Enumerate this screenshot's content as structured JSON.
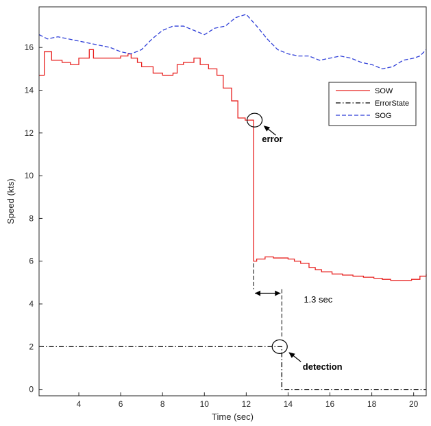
{
  "chart_data": {
    "type": "line",
    "xlabel": "Time (sec)",
    "ylabel": "Speed (kts)",
    "xlim": [
      2.1,
      20.6
    ],
    "ylim": [
      -0.3,
      17.9
    ],
    "xticks": [
      4,
      6,
      8,
      10,
      12,
      14,
      16,
      18,
      20
    ],
    "yticks": [
      0,
      2,
      4,
      6,
      8,
      10,
      12,
      14,
      16
    ],
    "grid": false,
    "legend_position": "right",
    "series": [
      {
        "name": "SOW",
        "color": "#e8201f",
        "style": "solid",
        "step": true,
        "x": [
          2.1,
          2.35,
          2.7,
          3.2,
          3.6,
          4.0,
          4.5,
          4.65,
          4.7,
          5.5,
          6.0,
          6.35,
          6.5,
          6.8,
          7.0,
          7.35,
          7.55,
          8.0,
          8.5,
          8.7,
          9.0,
          9.2,
          9.5,
          9.8,
          10.2,
          10.6,
          10.9,
          11.3,
          11.6,
          11.95,
          12.35,
          12.5,
          12.9,
          13.3,
          14.0,
          14.3,
          14.6,
          15.0,
          15.3,
          15.6,
          16.1,
          16.6,
          17.1,
          17.6,
          18.1,
          18.5,
          18.9,
          19.4,
          19.9,
          20.3,
          20.6
        ],
        "y": [
          14.7,
          15.8,
          15.4,
          15.3,
          15.2,
          15.5,
          15.9,
          15.9,
          15.5,
          15.5,
          15.6,
          15.7,
          15.5,
          15.3,
          15.1,
          15.1,
          14.8,
          14.7,
          14.8,
          15.2,
          15.3,
          15.3,
          15.5,
          15.2,
          15.0,
          14.7,
          14.1,
          13.5,
          12.7,
          12.6,
          6.0,
          6.1,
          6.2,
          6.15,
          6.1,
          6.0,
          5.9,
          5.7,
          5.6,
          5.5,
          5.4,
          5.35,
          5.3,
          5.25,
          5.2,
          5.15,
          5.1,
          5.1,
          5.15,
          5.3,
          5.4
        ]
      },
      {
        "name": "ErrorState",
        "color": "#000000",
        "style": "dashdot",
        "step": true,
        "x": [
          2.1,
          13.7,
          13.7,
          20.6
        ],
        "y": [
          2.0,
          2.0,
          0.0,
          0.0
        ]
      },
      {
        "name": "SOG",
        "color": "#2f3fd8",
        "style": "dashed",
        "step": false,
        "x": [
          2.1,
          2.5,
          3.0,
          3.5,
          4.0,
          4.5,
          5.0,
          5.5,
          6.0,
          6.5,
          7.0,
          7.5,
          8.0,
          8.5,
          9.0,
          9.5,
          10.0,
          10.5,
          11.0,
          11.5,
          12.0,
          12.5,
          13.0,
          13.5,
          14.0,
          14.5,
          15.0,
          15.5,
          16.0,
          16.5,
          17.0,
          17.5,
          18.0,
          18.5,
          19.0,
          19.5,
          20.0,
          20.3,
          20.6
        ],
        "y": [
          16.6,
          16.4,
          16.5,
          16.4,
          16.3,
          16.2,
          16.1,
          16.0,
          15.8,
          15.7,
          15.9,
          16.4,
          16.8,
          17.0,
          17.0,
          16.8,
          16.6,
          16.9,
          17.0,
          17.4,
          17.55,
          17.0,
          16.4,
          15.9,
          15.7,
          15.6,
          15.6,
          15.4,
          15.5,
          15.6,
          15.5,
          15.3,
          15.2,
          15.0,
          15.1,
          15.4,
          15.5,
          15.6,
          15.9
        ]
      }
    ],
    "annotations": [
      {
        "text": "error",
        "x": 12.75,
        "y": 11.7,
        "bold": true
      },
      {
        "text": "detection",
        "x": 14.7,
        "y": 1.05,
        "bold": true
      },
      {
        "text": "1.3 sec",
        "x": 14.75,
        "y": 4.2,
        "bold": false
      }
    ],
    "markers": [
      {
        "type": "circle",
        "x": 12.4,
        "y": 12.6
      },
      {
        "type": "circle",
        "x": 13.6,
        "y": 2.0
      }
    ],
    "interval": {
      "x1": 12.35,
      "x2": 13.7,
      "y": 4.5,
      "label": "1.3 sec"
    }
  }
}
